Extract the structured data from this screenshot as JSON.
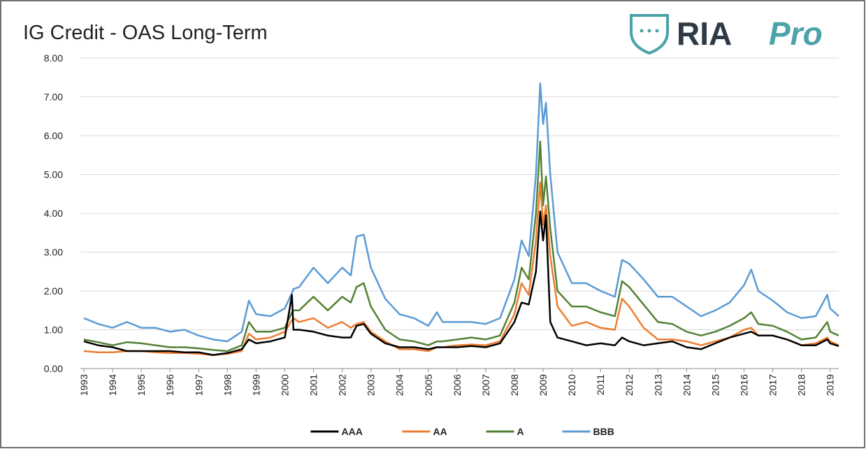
{
  "logo": {
    "text": "RIA",
    "accent": "Pro"
  },
  "chart_data": {
    "type": "line",
    "title": "IG Credit - OAS Long-Term",
    "x": [
      1993,
      1993.5,
      1994,
      1994.5,
      1995,
      1995.5,
      1996,
      1996.5,
      1997,
      1997.5,
      1998,
      1998.5,
      1998.75,
      1999,
      1999.5,
      2000,
      2000.25,
      2000.3,
      2000.5,
      2001,
      2001.5,
      2002,
      2002.3,
      2002.5,
      2002.75,
      2003,
      2003.5,
      2004,
      2004.5,
      2005,
      2005.3,
      2005.5,
      2006,
      2006.5,
      2007,
      2007.5,
      2008,
      2008.25,
      2008.5,
      2008.75,
      2008.9,
      2009,
      2009.1,
      2009.25,
      2009.5,
      2010,
      2010.5,
      2011,
      2011.5,
      2011.75,
      2012,
      2012.5,
      2013,
      2013.5,
      2014,
      2014.5,
      2015,
      2015.5,
      2016,
      2016.25,
      2016.5,
      2017,
      2017.5,
      2018,
      2018.5,
      2018.9,
      2019,
      2019.3
    ],
    "series": [
      {
        "name": "AAA",
        "color": "#000000",
        "values": [
          0.7,
          0.6,
          0.55,
          0.45,
          0.45,
          0.45,
          0.45,
          0.42,
          0.42,
          0.35,
          0.4,
          0.5,
          0.75,
          0.65,
          0.7,
          0.8,
          1.9,
          1.0,
          1.0,
          0.95,
          0.85,
          0.8,
          0.8,
          1.1,
          1.15,
          0.9,
          0.65,
          0.55,
          0.55,
          0.5,
          0.55,
          0.55,
          0.55,
          0.58,
          0.55,
          0.65,
          1.2,
          1.7,
          1.65,
          2.5,
          4.05,
          3.3,
          3.95,
          1.2,
          0.8,
          0.7,
          0.6,
          0.65,
          0.6,
          0.8,
          0.7,
          0.6,
          0.65,
          0.7,
          0.55,
          0.5,
          0.65,
          0.8,
          0.9,
          0.95,
          0.85,
          0.85,
          0.75,
          0.6,
          0.6,
          0.75,
          0.65,
          0.58
        ]
      },
      {
        "name": "AA",
        "color": "#ed7d31",
        "values": [
          0.45,
          0.42,
          0.42,
          0.45,
          0.45,
          0.42,
          0.4,
          0.4,
          0.38,
          0.35,
          0.38,
          0.45,
          0.9,
          0.75,
          0.8,
          0.95,
          1.25,
          1.3,
          1.2,
          1.3,
          1.05,
          1.2,
          1.05,
          1.15,
          1.2,
          0.95,
          0.7,
          0.5,
          0.5,
          0.45,
          0.55,
          0.55,
          0.6,
          0.62,
          0.6,
          0.7,
          1.4,
          2.2,
          1.9,
          3.3,
          4.8,
          3.7,
          4.2,
          2.9,
          1.6,
          1.1,
          1.2,
          1.05,
          1.0,
          1.8,
          1.6,
          1.05,
          0.75,
          0.75,
          0.7,
          0.6,
          0.7,
          0.8,
          1.0,
          1.05,
          0.85,
          0.85,
          0.75,
          0.6,
          0.65,
          0.8,
          0.7,
          0.6
        ]
      },
      {
        "name": "A",
        "color": "#548235",
        "values": [
          0.75,
          0.68,
          0.6,
          0.68,
          0.65,
          0.6,
          0.55,
          0.55,
          0.52,
          0.48,
          0.45,
          0.6,
          1.2,
          0.95,
          0.95,
          1.05,
          1.45,
          1.5,
          1.5,
          1.85,
          1.5,
          1.85,
          1.7,
          2.1,
          2.2,
          1.6,
          1.0,
          0.75,
          0.7,
          0.6,
          0.7,
          0.7,
          0.75,
          0.8,
          0.75,
          0.85,
          1.7,
          2.6,
          2.3,
          4.0,
          5.85,
          4.2,
          4.95,
          3.6,
          2.0,
          1.6,
          1.6,
          1.45,
          1.35,
          2.25,
          2.1,
          1.65,
          1.2,
          1.15,
          0.95,
          0.85,
          0.95,
          1.1,
          1.3,
          1.45,
          1.15,
          1.1,
          0.95,
          0.75,
          0.8,
          1.2,
          0.95,
          0.85
        ]
      },
      {
        "name": "BBB",
        "color": "#5b9bd5",
        "values": [
          1.3,
          1.15,
          1.05,
          1.2,
          1.05,
          1.05,
          0.95,
          1.0,
          0.85,
          0.75,
          0.7,
          0.95,
          1.75,
          1.4,
          1.35,
          1.55,
          1.95,
          2.05,
          2.1,
          2.6,
          2.2,
          2.6,
          2.4,
          3.4,
          3.45,
          2.6,
          1.8,
          1.4,
          1.3,
          1.1,
          1.45,
          1.2,
          1.2,
          1.2,
          1.15,
          1.3,
          2.3,
          3.3,
          2.9,
          5.0,
          7.35,
          6.3,
          6.85,
          5.0,
          3.0,
          2.2,
          2.2,
          2.0,
          1.85,
          2.8,
          2.7,
          2.3,
          1.85,
          1.85,
          1.6,
          1.35,
          1.5,
          1.7,
          2.15,
          2.55,
          2.0,
          1.75,
          1.45,
          1.3,
          1.35,
          1.9,
          1.55,
          1.35
        ]
      }
    ],
    "xlim": [
      1993,
      2019.3
    ],
    "xticks": [
      1993,
      1994,
      1995,
      1996,
      1997,
      1998,
      1999,
      2000,
      2001,
      2002,
      2003,
      2004,
      2005,
      2006,
      2007,
      2008,
      2009,
      2010,
      2011,
      2012,
      2013,
      2014,
      2015,
      2016,
      2017,
      2018,
      2019
    ],
    "ylim": [
      0,
      8
    ],
    "yticks": [
      {
        "value": 0,
        "label": "0.00"
      },
      {
        "value": 1,
        "label": "1.00"
      },
      {
        "value": 2,
        "label": "2.00"
      },
      {
        "value": 3,
        "label": "3.00"
      },
      {
        "value": 4,
        "label": "4.00"
      },
      {
        "value": 5,
        "label": "5.00"
      },
      {
        "value": 6,
        "label": "6.00"
      },
      {
        "value": 7,
        "label": "7.00"
      },
      {
        "value": 8,
        "label": "8.00"
      }
    ],
    "grid": true,
    "legend": "bottom"
  }
}
